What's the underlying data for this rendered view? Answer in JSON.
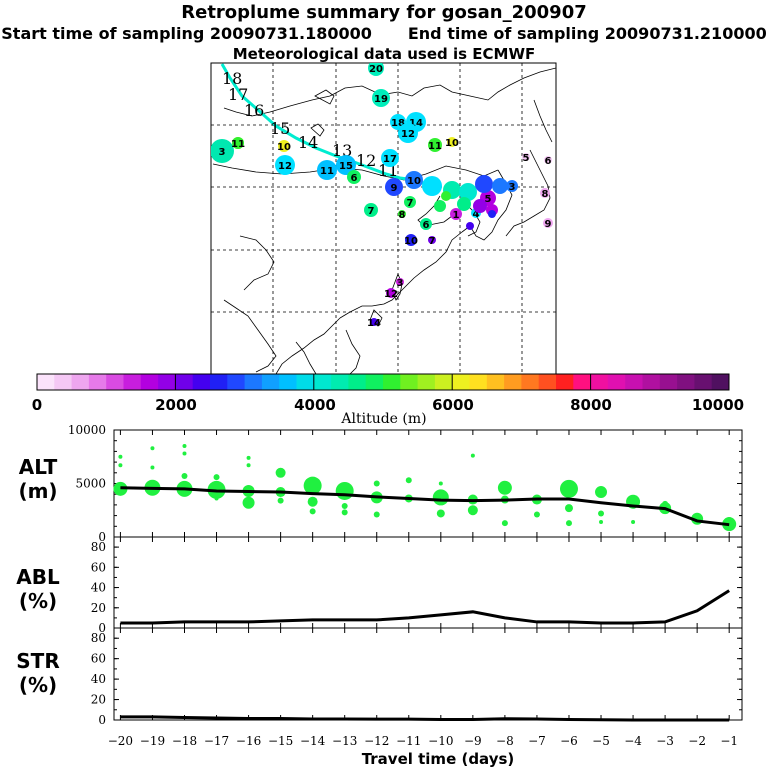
{
  "header": {
    "title": "Retroplume summary for gosan_200907",
    "start_label": "Start time of sampling 20090731.180000",
    "end_label": "End time of sampling 20090731.210000",
    "met_label": "Meteorological data used is ECMWF"
  },
  "colorbar": {
    "label": "Altitude (m)",
    "ticks": [
      "0",
      "2000",
      "4000",
      "6000",
      "8000",
      "10000"
    ],
    "colors": [
      "#fbe3fb",
      "#f5c8f5",
      "#eea6ef",
      "#e67ae9",
      "#d94be2",
      "#c81ede",
      "#b300e0",
      "#9300e6",
      "#7000ea",
      "#4400ef",
      "#2020f5",
      "#2048ff",
      "#1c78ff",
      "#10a0ff",
      "#00c0ff",
      "#00dce8",
      "#00e8d0",
      "#00ecb0",
      "#00ee8a",
      "#10f060",
      "#30f030",
      "#70f020",
      "#a0f020",
      "#ccf020",
      "#eef020",
      "#ffe020",
      "#ffc020",
      "#ff9c20",
      "#ff7820",
      "#ff5020",
      "#ff2020",
      "#ff1080",
      "#f010a0",
      "#e010b0",
      "#c810b0",
      "#b010a0",
      "#981090",
      "#801080",
      "#681070",
      "#501060"
    ]
  },
  "map": {
    "path_labels": [
      "18",
      "17",
      "16",
      "15",
      "14",
      "13",
      "12",
      "11"
    ],
    "plume_points": [
      {
        "label": "20",
        "color": "#00eebb"
      },
      {
        "label": "19",
        "color": "#00eebb"
      },
      {
        "label": "18",
        "color": "#00e0ff"
      },
      {
        "label": "14",
        "color": "#00e0ff"
      },
      {
        "label": "12",
        "color": "#00e0ff"
      },
      {
        "label": "11",
        "color": "#a0f020"
      },
      {
        "label": "10",
        "color": "#eef020"
      },
      {
        "label": "11",
        "color": "#30f030"
      },
      {
        "label": "10",
        "color": "#eef020"
      },
      {
        "label": "12",
        "color": "#00e0ff"
      },
      {
        "label": "11",
        "color": "#00c0ff"
      },
      {
        "label": "17",
        "color": "#00e0ff"
      },
      {
        "label": "15",
        "color": "#00c0ff"
      },
      {
        "label": "6",
        "color": "#10f060"
      },
      {
        "label": "9",
        "color": "#2048ff"
      },
      {
        "label": "10",
        "color": "#1c78ff"
      },
      {
        "label": "7",
        "color": "#00ee8a"
      },
      {
        "label": "7",
        "color": "#10f060"
      },
      {
        "label": "8",
        "color": "#30f030"
      },
      {
        "label": "6",
        "color": "#00ee8a"
      },
      {
        "label": "5",
        "color": "#b300e0"
      },
      {
        "label": "1",
        "color": "#c81ede"
      },
      {
        "label": "4",
        "color": "#00e0ff"
      },
      {
        "label": "3",
        "color": "#1c78ff"
      },
      {
        "label": "8",
        "color": "#eea6ef"
      },
      {
        "label": "9",
        "color": "#eea6ef"
      },
      {
        "label": "5",
        "color": "#f5c8f5"
      },
      {
        "label": "6",
        "color": "#f5c8f5"
      },
      {
        "label": "10",
        "color": "#2020f5"
      },
      {
        "label": "7",
        "color": "#7000ea"
      },
      {
        "label": "3",
        "color": "#c81ede"
      },
      {
        "label": "12",
        "color": "#b300e0"
      },
      {
        "label": "14",
        "color": "#4400ef"
      },
      {
        "label": "3",
        "color": "#00e8b0"
      },
      {
        "label": "11",
        "color": "#30f030"
      }
    ]
  },
  "chart_data": [
    {
      "type": "line",
      "name": "ALT",
      "ylabel_lines": [
        "ALT",
        "(m)"
      ],
      "x": [
        -20,
        -19,
        -18,
        -17,
        -16,
        -15,
        -14,
        -13,
        -12,
        -11,
        -10,
        -9,
        -8,
        -7,
        -6,
        -5,
        -4,
        -3,
        -2,
        -1
      ],
      "series": [
        {
          "name": "mean altitude",
          "values": [
            4600,
            4550,
            4500,
            4300,
            4250,
            4200,
            4050,
            3950,
            3750,
            3600,
            3450,
            3400,
            3450,
            3550,
            3550,
            3200,
            2900,
            2650,
            1500,
            1150
          ]
        }
      ],
      "scatter": [
        {
          "x": -20,
          "y": 4500,
          "r": 7
        },
        {
          "x": -20,
          "y": 6700,
          "r": 2
        },
        {
          "x": -20,
          "y": 7500,
          "r": 2
        },
        {
          "x": -19,
          "y": 4600,
          "r": 8
        },
        {
          "x": -19,
          "y": 8300,
          "r": 2
        },
        {
          "x": -19,
          "y": 6500,
          "r": 2
        },
        {
          "x": -18,
          "y": 4500,
          "r": 8
        },
        {
          "x": -18,
          "y": 5700,
          "r": 3
        },
        {
          "x": -18,
          "y": 7800,
          "r": 2
        },
        {
          "x": -18,
          "y": 8500,
          "r": 2
        },
        {
          "x": -17,
          "y": 4400,
          "r": 9
        },
        {
          "x": -17,
          "y": 5600,
          "r": 3
        },
        {
          "x": -17,
          "y": 3600,
          "r": 2
        },
        {
          "x": -16,
          "y": 4300,
          "r": 6
        },
        {
          "x": -16,
          "y": 3200,
          "r": 6
        },
        {
          "x": -16,
          "y": 7400,
          "r": 2
        },
        {
          "x": -16,
          "y": 6700,
          "r": 2
        },
        {
          "x": -15,
          "y": 4200,
          "r": 5
        },
        {
          "x": -15,
          "y": 6000,
          "r": 5
        },
        {
          "x": -15,
          "y": 3400,
          "r": 3
        },
        {
          "x": -14,
          "y": 4800,
          "r": 9
        },
        {
          "x": -14,
          "y": 3300,
          "r": 5
        },
        {
          "x": -14,
          "y": 2400,
          "r": 3
        },
        {
          "x": -13,
          "y": 4300,
          "r": 9
        },
        {
          "x": -13,
          "y": 2900,
          "r": 3
        },
        {
          "x": -13,
          "y": 2300,
          "r": 3
        },
        {
          "x": -12,
          "y": 3700,
          "r": 6
        },
        {
          "x": -12,
          "y": 5000,
          "r": 3
        },
        {
          "x": -12,
          "y": 2100,
          "r": 3
        },
        {
          "x": -11,
          "y": 3600,
          "r": 4
        },
        {
          "x": -11,
          "y": 5300,
          "r": 3
        },
        {
          "x": -10,
          "y": 3700,
          "r": 8
        },
        {
          "x": -10,
          "y": 2200,
          "r": 4
        },
        {
          "x": -10,
          "y": 5000,
          "r": 2
        },
        {
          "x": -9,
          "y": 3500,
          "r": 5
        },
        {
          "x": -9,
          "y": 2500,
          "r": 5
        },
        {
          "x": -9,
          "y": 7600,
          "r": 2
        },
        {
          "x": -8,
          "y": 4600,
          "r": 7
        },
        {
          "x": -8,
          "y": 3500,
          "r": 4
        },
        {
          "x": -8,
          "y": 1300,
          "r": 3
        },
        {
          "x": -7,
          "y": 3500,
          "r": 5
        },
        {
          "x": -7,
          "y": 2100,
          "r": 3
        },
        {
          "x": -6,
          "y": 4500,
          "r": 9
        },
        {
          "x": -6,
          "y": 2700,
          "r": 4
        },
        {
          "x": -6,
          "y": 1300,
          "r": 3
        },
        {
          "x": -5,
          "y": 4200,
          "r": 6
        },
        {
          "x": -5,
          "y": 2200,
          "r": 3
        },
        {
          "x": -5,
          "y": 1400,
          "r": 2
        },
        {
          "x": -4,
          "y": 3300,
          "r": 7
        },
        {
          "x": -4,
          "y": 1400,
          "r": 2
        },
        {
          "x": -3,
          "y": 2700,
          "r": 6
        },
        {
          "x": -3,
          "y": 3100,
          "r": 3
        },
        {
          "x": -2,
          "y": 1700,
          "r": 6
        },
        {
          "x": -1,
          "y": 1200,
          "r": 7
        },
        {
          "x": -1,
          "y": 1500,
          "r": 4
        }
      ],
      "scatter_color": "#20f040",
      "ylim": [
        0,
        10000
      ],
      "yticks": [
        "0",
        "5000",
        "10000"
      ]
    },
    {
      "type": "line",
      "name": "ABL",
      "ylabel_lines": [
        "ABL",
        "(%)"
      ],
      "x": [
        -20,
        -19,
        -18,
        -17,
        -16,
        -15,
        -14,
        -13,
        -12,
        -11,
        -10,
        -9,
        -8,
        -7,
        -6,
        -5,
        -4,
        -3,
        -2,
        -1
      ],
      "series": [
        {
          "name": "ABL fraction",
          "values": [
            5,
            5,
            6,
            6,
            6,
            7,
            8,
            8,
            8,
            10,
            13,
            16,
            10,
            6,
            6,
            5,
            5,
            6,
            17,
            37
          ]
        }
      ],
      "ylim": [
        0,
        90
      ],
      "yticks": [
        "0",
        "20",
        "40",
        "60",
        "80"
      ]
    },
    {
      "type": "line",
      "name": "STR",
      "ylabel_lines": [
        "STR",
        "(%)"
      ],
      "x": [
        -20,
        -19,
        -18,
        -17,
        -16,
        -15,
        -14,
        -13,
        -12,
        -11,
        -10,
        -9,
        -8,
        -7,
        -6,
        -5,
        -4,
        -3,
        -2,
        -1
      ],
      "series": [
        {
          "name": "STR fraction",
          "values": [
            3,
            3,
            2.5,
            2,
            1.5,
            1.5,
            1,
            1,
            0.8,
            0.8,
            0.5,
            0.5,
            1.2,
            1,
            0.5,
            0.3,
            0,
            0,
            0,
            0
          ]
        }
      ],
      "ylim": [
        0,
        90
      ],
      "yticks": [
        "0",
        "20",
        "40",
        "60",
        "80"
      ]
    }
  ],
  "xaxis": {
    "label": "Travel time (days)",
    "ticks": [
      "−20",
      "−19",
      "−18",
      "−17",
      "−16",
      "−15",
      "−14",
      "−13",
      "−12",
      "−11",
      "−10",
      "−9",
      "−8",
      "−7",
      "−6",
      "−5",
      "−4",
      "−3",
      "−2",
      "−1"
    ]
  }
}
